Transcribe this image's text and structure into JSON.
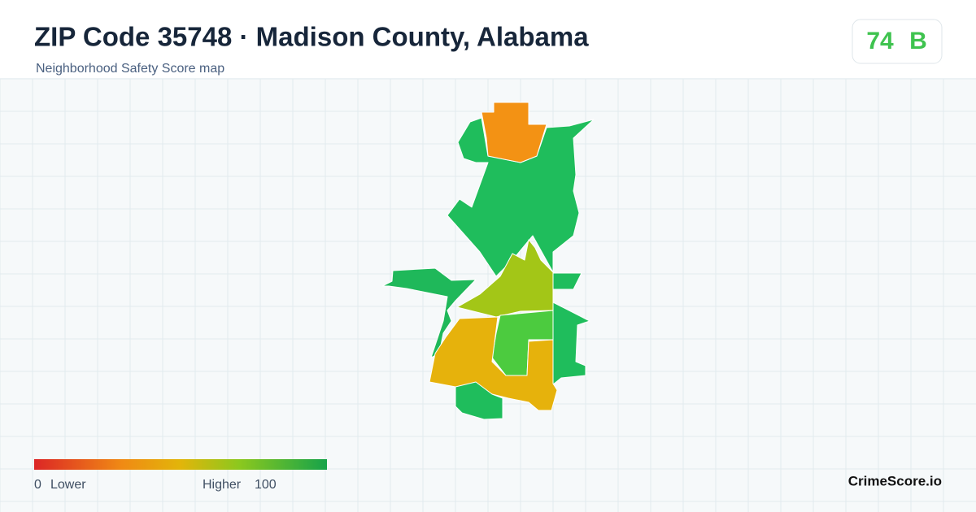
{
  "header": {
    "title": "ZIP Code 35748 · Madison County, Alabama",
    "subtitle": "Neighborhood Safety Score map"
  },
  "score": {
    "value": 74,
    "grade": "B"
  },
  "legend": {
    "min": 0,
    "min_label": "Lower",
    "max_label": "Higher",
    "max": 100
  },
  "brand": "CrimeScore.io"
}
